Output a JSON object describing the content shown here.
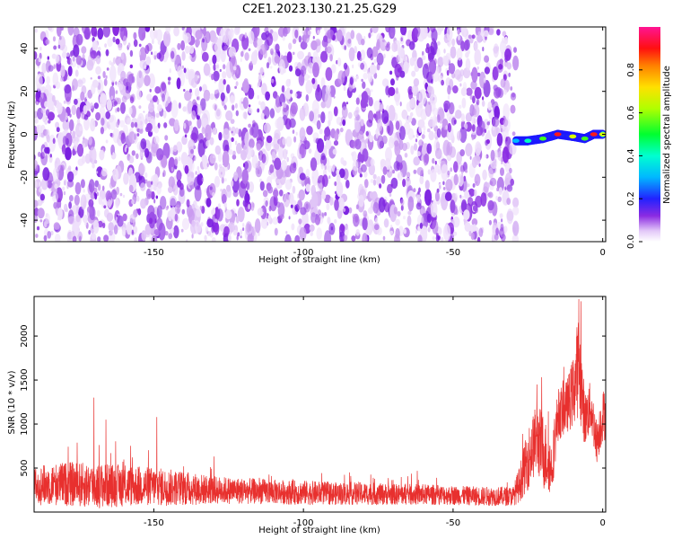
{
  "title": "C2E1.2023.130.21.25.G29",
  "colors": {
    "snr_line": "#e8302e",
    "spectrogram_noise": "#8b2be2",
    "frame": "#000000"
  },
  "chart_data": [
    {
      "type": "heatmap",
      "xlabel": "Height of straight line (km)",
      "ylabel": "Frequency (Hz)",
      "xlim": [
        -190,
        1
      ],
      "ylim": [
        -50,
        50
      ],
      "xticks": [
        -150,
        -100,
        -50,
        0
      ],
      "yticks": [
        -40,
        -20,
        0,
        20,
        40
      ],
      "colorbar": {
        "label": "Normalized spectral amplitude",
        "range": [
          0.0,
          1.0
        ],
        "ticks": [
          0.0,
          0.2,
          0.4,
          0.6,
          0.8
        ],
        "colormap": "rainbow (white-purple-blue-cyan-green-yellow-red-magenta)"
      },
      "noise_region": {
        "x_range": [
          -190,
          -29
        ],
        "freq_range": [
          -50,
          50
        ],
        "amplitude": "~0.05-0.2 scattered"
      },
      "signal_track": [
        {
          "x": -29,
          "freq": -3,
          "amp": 0.35
        },
        {
          "x": -25,
          "freq": -3,
          "amp": 0.5
        },
        {
          "x": -20,
          "freq": -2,
          "amp": 0.6
        },
        {
          "x": -15,
          "freq": 0,
          "amp": 0.85
        },
        {
          "x": -10,
          "freq": -1,
          "amp": 0.7
        },
        {
          "x": -6,
          "freq": -2,
          "amp": 0.6
        },
        {
          "x": -3,
          "freq": 0,
          "amp": 0.85
        },
        {
          "x": 0,
          "freq": 0,
          "amp": 0.7
        }
      ]
    },
    {
      "type": "line",
      "xlabel": "Height of straight line (km)",
      "ylabel": "SNR (10 * v/v)",
      "xlim": [
        -190,
        1
      ],
      "ylim": [
        0,
        2450
      ],
      "xticks": [
        -150,
        -100,
        -50,
        0
      ],
      "yticks": [
        500,
        1000,
        1500,
        2000
      ],
      "envelope_note": "dense noisy trace; values below are approximate mean and spread",
      "x": [
        -190,
        -180,
        -170,
        -160,
        -150,
        -140,
        -130,
        -120,
        -110,
        -100,
        -90,
        -80,
        -70,
        -60,
        -50,
        -40,
        -30,
        -28,
        -25,
        -22,
        -20,
        -17,
        -15,
        -12,
        -10,
        -8,
        -6,
        -4,
        -2,
        0
      ],
      "mean": [
        300,
        320,
        300,
        300,
        290,
        270,
        250,
        240,
        230,
        220,
        210,
        210,
        200,
        200,
        190,
        180,
        180,
        300,
        600,
        850,
        700,
        500,
        1100,
        1200,
        1350,
        1700,
        1050,
        1200,
        800,
        1100
      ],
      "spread": [
        220,
        250,
        260,
        240,
        220,
        200,
        160,
        150,
        140,
        140,
        130,
        130,
        120,
        120,
        110,
        110,
        110,
        200,
        350,
        400,
        450,
        300,
        300,
        300,
        400,
        600,
        300,
        300,
        250,
        300
      ],
      "spikes": [
        {
          "x": -170,
          "y": 1300
        },
        {
          "x": -166,
          "y": 1050
        },
        {
          "x": -149,
          "y": 1080
        },
        {
          "x": -8,
          "y": 2420
        },
        {
          "x": -22,
          "y": 1450
        },
        {
          "x": -13,
          "y": 1650
        }
      ]
    }
  ]
}
